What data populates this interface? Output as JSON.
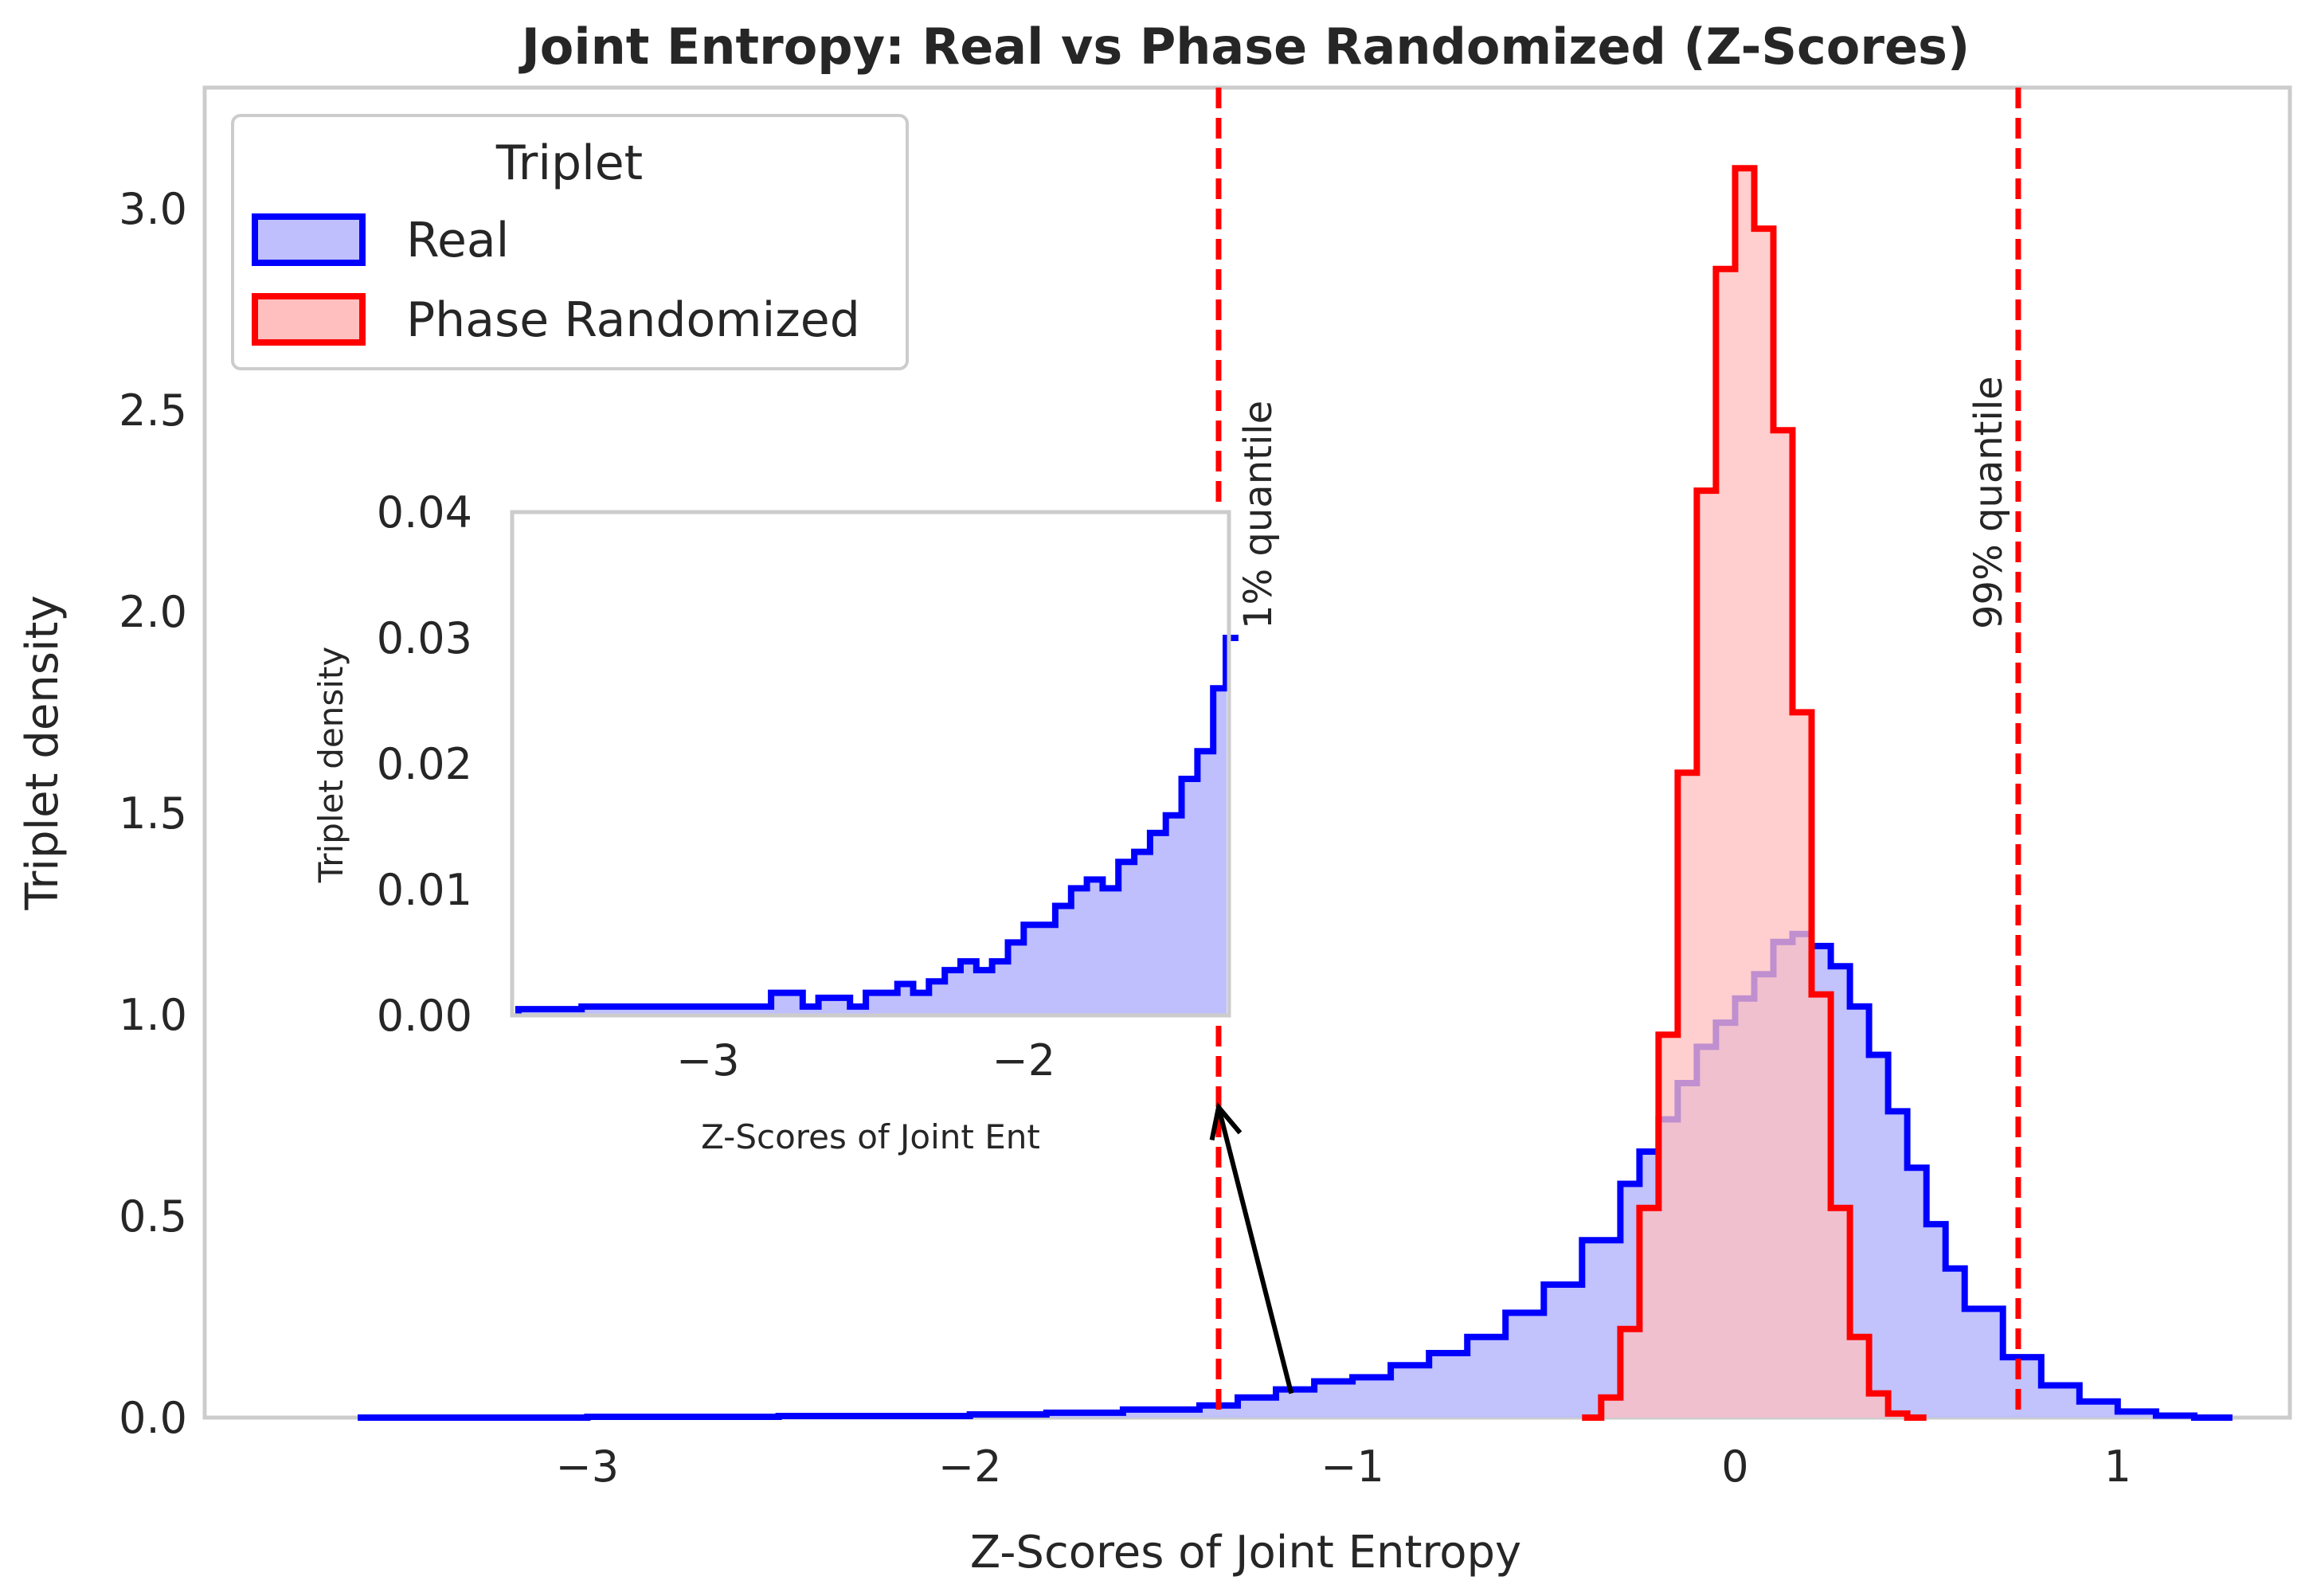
{
  "chart_data": [
    {
      "type": "histogram-step",
      "title": "Joint Entropy: Real vs Phase Randomized (Z-Scores)",
      "xlabel": "Z-Scores of Joint Entropy",
      "ylabel": "Triplet density",
      "xlim": [
        -4.0,
        1.45
      ],
      "ylim": [
        0.0,
        3.3
      ],
      "xticks": [
        -3,
        -2,
        -1,
        0,
        1
      ],
      "xtick_labels": [
        "−3",
        "−2",
        "−1",
        "0",
        "1"
      ],
      "yticks": [
        0.0,
        0.5,
        1.0,
        1.5,
        2.0,
        2.5,
        3.0
      ],
      "ytick_labels": [
        "0.0",
        "0.5",
        "1.0",
        "1.5",
        "2.0",
        "2.5",
        "3.0"
      ],
      "grid": false,
      "legend": {
        "title": "Triplet",
        "placement": "top-left",
        "entries": [
          {
            "label": "Real",
            "color": "#0000ff"
          },
          {
            "label": "Phase Randomized",
            "color": "#ff0000"
          }
        ]
      },
      "series": [
        {
          "name": "Real",
          "color": "#0000ff",
          "fill": "#bfbffd",
          "x": [
            -3.6,
            -3.0,
            -2.5,
            -2.0,
            -1.8,
            -1.6,
            -1.4,
            -1.3,
            -1.2,
            -1.1,
            -1.0,
            -0.9,
            -0.8,
            -0.7,
            -0.6,
            -0.5,
            -0.4,
            -0.3,
            -0.25,
            -0.2,
            -0.15,
            -0.1,
            -0.05,
            0.0,
            0.05,
            0.1,
            0.15,
            0.2,
            0.25,
            0.3,
            0.35,
            0.4,
            0.45,
            0.5,
            0.55,
            0.6,
            0.7,
            0.8,
            0.9,
            1.0,
            1.1,
            1.2
          ],
          "y": [
            0.0,
            0.002,
            0.004,
            0.008,
            0.012,
            0.02,
            0.03,
            0.05,
            0.07,
            0.09,
            0.1,
            0.13,
            0.16,
            0.2,
            0.26,
            0.33,
            0.44,
            0.58,
            0.66,
            0.74,
            0.83,
            0.92,
            0.98,
            1.04,
            1.1,
            1.18,
            1.2,
            1.17,
            1.12,
            1.02,
            0.9,
            0.76,
            0.62,
            0.48,
            0.37,
            0.27,
            0.15,
            0.08,
            0.04,
            0.015,
            0.005,
            0.0
          ]
        },
        {
          "name": "Phase Randomized",
          "color": "#ff0000",
          "fill": "#ffbfbf",
          "x": [
            -0.4,
            -0.35,
            -0.3,
            -0.25,
            -0.2,
            -0.15,
            -0.1,
            -0.05,
            0.0,
            0.05,
            0.1,
            0.15,
            0.2,
            0.25,
            0.3,
            0.35,
            0.4,
            0.45
          ],
          "y": [
            0.0,
            0.05,
            0.22,
            0.52,
            0.95,
            1.6,
            2.3,
            2.85,
            3.1,
            2.95,
            2.45,
            1.75,
            1.05,
            0.52,
            0.2,
            0.06,
            0.01,
            0.0
          ]
        }
      ],
      "vlines": [
        {
          "x": -1.35,
          "color": "#ff0000",
          "style": "dashed",
          "label": "1% quantile"
        },
        {
          "x": 0.74,
          "color": "#ff0000",
          "style": "dashed",
          "label": "99% quantile"
        }
      ],
      "arrow": {
        "from": [
          -1.16,
          0.06
        ],
        "to": [
          -1.35,
          0.77
        ],
        "color": "#000000"
      }
    },
    {
      "type": "histogram-step",
      "role": "inset",
      "xlabel": "Z-Scores of Joint Ent",
      "ylabel": "Triplet density",
      "xlim": [
        -3.62,
        -1.35
      ],
      "ylim": [
        0.0,
        0.04
      ],
      "xticks": [
        -3,
        -2
      ],
      "xtick_labels": [
        "−3",
        "−2"
      ],
      "yticks": [
        0.0,
        0.01,
        0.02,
        0.03,
        0.04
      ],
      "ytick_labels": [
        "0.00",
        "0.01",
        "0.02",
        "0.03",
        "0.04"
      ],
      "series": [
        {
          "name": "Real",
          "color": "#0000ff",
          "fill": "#bfbffd",
          "x": [
            -3.6,
            -3.4,
            -3.3,
            -3.2,
            -3.1,
            -2.95,
            -2.85,
            -2.8,
            -2.7,
            -2.65,
            -2.6,
            -2.55,
            -2.5,
            -2.45,
            -2.4,
            -2.35,
            -2.3,
            -2.25,
            -2.2,
            -2.15,
            -2.1,
            -2.05,
            -2.0,
            -1.95,
            -1.9,
            -1.85,
            -1.8,
            -1.75,
            -1.7,
            -1.65,
            -1.6,
            -1.55,
            -1.5,
            -1.45,
            -1.4,
            -1.36
          ],
          "y": [
            0.0005,
            0.0007,
            0.0007,
            0.0007,
            0.0007,
            0.0007,
            0.0007,
            0.0018,
            0.0007,
            0.0014,
            0.0014,
            0.0007,
            0.0018,
            0.0018,
            0.0025,
            0.0018,
            0.0027,
            0.0036,
            0.0043,
            0.0036,
            0.0043,
            0.0058,
            0.0072,
            0.0072,
            0.0087,
            0.0101,
            0.0108,
            0.0101,
            0.0122,
            0.013,
            0.0145,
            0.0159,
            0.0188,
            0.021,
            0.026,
            0.03
          ]
        }
      ]
    }
  ]
}
